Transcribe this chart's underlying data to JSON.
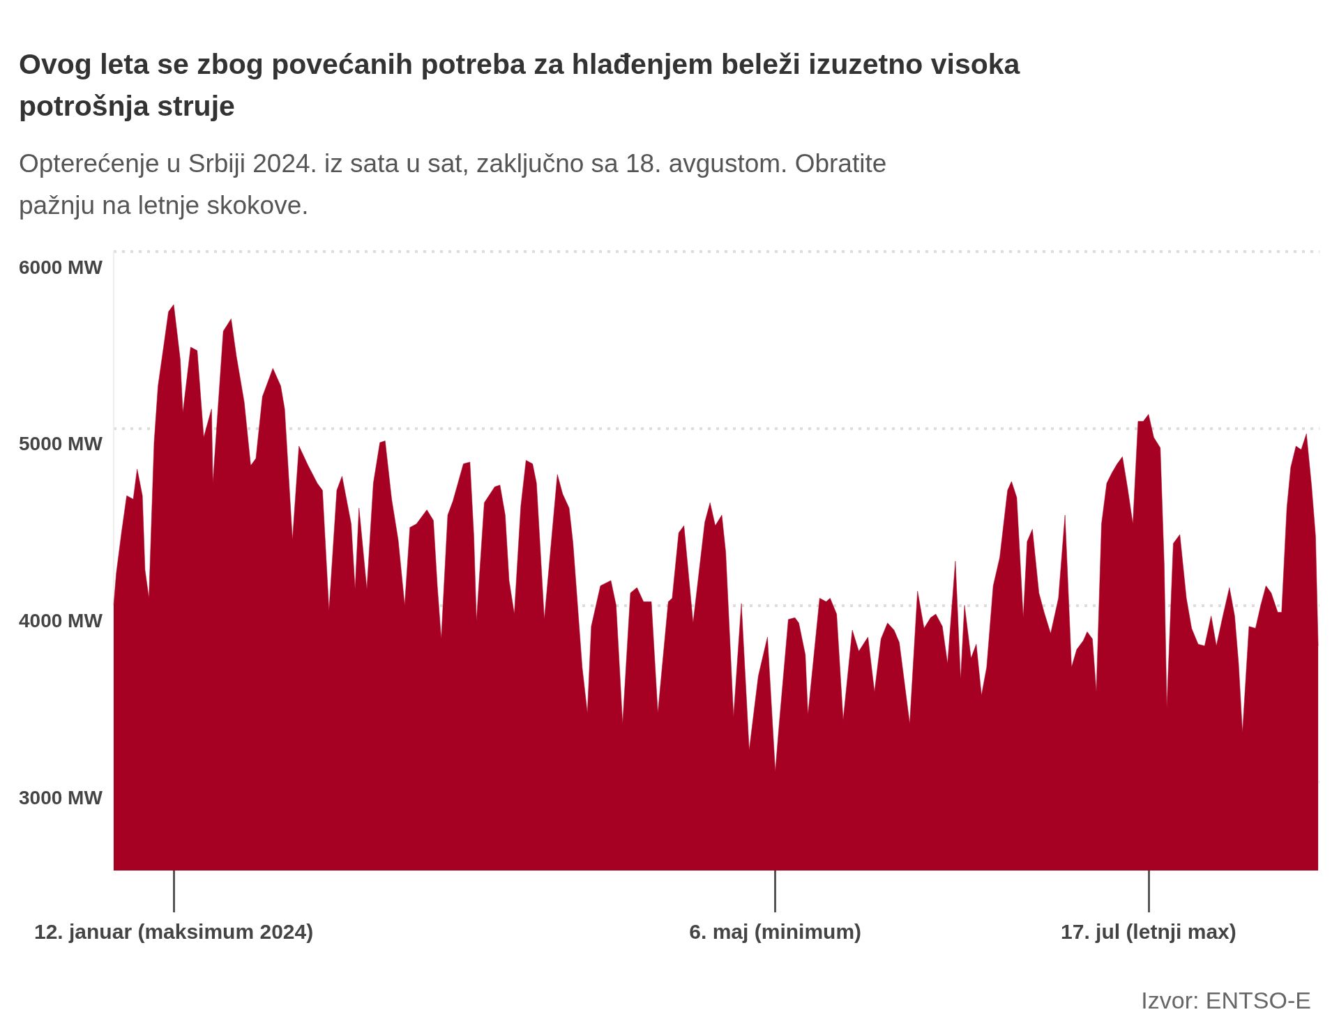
{
  "chart_data": {
    "type": "area",
    "title": "Ovog leta se zbog povećanih potreba za hlađenjem beleži izuzetno visoka potrošnja struje",
    "subtitle": "Opterećenje u Srbiji 2024. iz sata u sat, zaključno sa 18. avgustom. Obratite pažnju na letnje skokove.",
    "annotations": [
      "Izvor: ENTSO-E"
    ],
    "color": "#a60023",
    "grid": "y",
    "xlim": [
      "2024-01-01T00:00",
      "2024-08-19T00:00"
    ],
    "xticks": [
      {
        "value": "2024-01-12T12:00",
        "label": "12. januar (maksimum 2024)"
      },
      {
        "value": "2024-05-06T18:00",
        "label": "6. maj (minimum)"
      },
      {
        "value": "2024-07-17T06:00",
        "label": "17. jul (letnji max)"
      }
    ],
    "ylim": [
      2500,
      6000
    ],
    "yticks": [
      {
        "value": 3000,
        "label": "3000 MW"
      },
      {
        "value": 4000,
        "label": "4000 MW"
      },
      {
        "value": 5000,
        "label": "5000 MW"
      },
      {
        "value": 6000,
        "label": "6000 MW"
      }
    ],
    "x": [
      "2024-01-01T00:00",
      "2024-01-01T12:00",
      "2024-01-02T12:00",
      "2024-01-03T12:00",
      "2024-01-04T18:00",
      "2024-01-05T12:00",
      "2024-01-06T12:00",
      "2024-01-07T00:00",
      "2024-01-07T18:00",
      "2024-01-08T18:00",
      "2024-01-09T12:00",
      "2024-01-10T18:00",
      "2024-01-11T12:00",
      "2024-01-12T12:00",
      "2024-01-13T18:00",
      "2024-01-14T06:00",
      "2024-01-15T18:00",
      "2024-01-17T00:00",
      "2024-01-18T06:00",
      "2024-01-19T18:00",
      "2024-01-20T00:00",
      "2024-01-22T00:00",
      "2024-01-23T12:00",
      "2024-01-24T12:00",
      "2024-01-26T00:00",
      "2024-01-27T06:00",
      "2024-01-28T06:00",
      "2024-01-29T12:00",
      "2024-01-31T12:00",
      "2024-02-02T00:00",
      "2024-02-02T18:00",
      "2024-02-04T06:00",
      "2024-02-05T12:00",
      "2024-02-07T06:00",
      "2024-02-09T00:00",
      "2024-02-10T00:00",
      "2024-02-11T06:00",
      "2024-02-12T18:00",
      "2024-02-13T18:00",
      "2024-02-15T12:00",
      "2024-02-16T06:00",
      "2024-02-17T00:00",
      "2024-02-18T12:00",
      "2024-02-19T18:00",
      "2024-02-21T00:00",
      "2024-02-22T00:00",
      "2024-02-23T06:00",
      "2024-02-24T12:00",
      "2024-02-25T18:00",
      "2024-02-26T18:00",
      "2024-02-28T00:00",
      "2024-03-01T00:00",
      "2024-03-02T06:00",
      "2024-03-03T00:00",
      "2024-03-03T18:00",
      "2024-03-05T00:00",
      "2024-03-06T00:00",
      "2024-03-08T00:00",
      "2024-03-09T06:00",
      "2024-03-10T00:00",
      "2024-03-10T12:00",
      "2024-03-12T00:00",
      "2024-03-14T00:00",
      "2024-03-15T00:00",
      "2024-03-16T00:00",
      "2024-03-16T18:00",
      "2024-03-17T18:00",
      "2024-03-19T00:00",
      "2024-03-20T00:00",
      "2024-03-21T06:00",
      "2024-03-22T00:00",
      "2024-03-23T12:00",
      "2024-03-26T00:00",
      "2024-03-27T00:00",
      "2024-03-28T06:00",
      "2024-03-29T00:00",
      "2024-03-30T18:00",
      "2024-03-31T18:00",
      "2024-04-01T12:00",
      "2024-04-03T06:00",
      "2024-04-05T06:00",
      "2024-04-06T06:00",
      "2024-04-07T12:00",
      "2024-04-09T00:00",
      "2024-04-10T06:00",
      "2024-04-11T12:00",
      "2024-04-13T00:00",
      "2024-04-14T06:00",
      "2024-04-16T06:00",
      "2024-04-17T00:00",
      "2024-04-18T06:00",
      "2024-04-19T06:00",
      "2024-04-21T00:00",
      "2024-04-23T06:00",
      "2024-04-24T06:00",
      "2024-04-25T06:00",
      "2024-04-26T12:00",
      "2024-04-27T06:00",
      "2024-04-28T18:00",
      "2024-04-30T06:00",
      "2024-05-01T18:00",
      "2024-05-03T12:00",
      "2024-05-05T06:00",
      "2024-05-06T18:00",
      "2024-05-07T12:00",
      "2024-05-09T06:00",
      "2024-05-10T12:00",
      "2024-05-11T06:00",
      "2024-05-12T12:00",
      "2024-05-13T00:00",
      "2024-05-15T06:00",
      "2024-05-16T12:00",
      "2024-05-17T06:00",
      "2024-05-18T12:00",
      "2024-05-19T18:00",
      "2024-05-21T12:00",
      "2024-05-22T18:00",
      "2024-05-24T12:00",
      "2024-05-25T18:00",
      "2024-05-27T00:00",
      "2024-05-28T06:00",
      "2024-05-29T12:00",
      "2024-05-30T12:00",
      "2024-06-01T12:00",
      "2024-06-03T00:00",
      "2024-06-04T06:00",
      "2024-06-05T12:00",
      "2024-06-06T12:00",
      "2024-06-07T18:00",
      "2024-06-08T18:00",
      "2024-06-10T06:00",
      "2024-06-11T06:00",
      "2024-06-12T00:00",
      "2024-06-13T06:00",
      "2024-06-14T06:00",
      "2024-06-15T06:00",
      "2024-06-16T06:00",
      "2024-06-17T12:00",
      "2024-06-18T18:00",
      "2024-06-19T12:00",
      "2024-06-20T06:00",
      "2024-06-21T00:00",
      "2024-06-22T00:00",
      "2024-06-23T06:00",
      "2024-06-24T00:00",
      "2024-06-25T00:00",
      "2024-06-26T06:00",
      "2024-06-27T06:00",
      "2024-06-28T12:00",
      "2024-06-30T00:00",
      "2024-07-01T06:00",
      "2024-07-02T12:00",
      "2024-07-03T12:00",
      "2024-07-04T18:00",
      "2024-07-05T12:00",
      "2024-07-06T12:00",
      "2024-07-07T06:00",
      "2024-07-08T06:00",
      "2024-07-09T06:00",
      "2024-07-10T06:00",
      "2024-07-11T06:00",
      "2024-07-12T06:00",
      "2024-07-13T06:00",
      "2024-07-14T06:00",
      "2024-07-15T06:00",
      "2024-07-16T06:00",
      "2024-07-17T06:00",
      "2024-07-18T06:00",
      "2024-07-19T12:00",
      "2024-07-20T06:00",
      "2024-07-20T18:00",
      "2024-07-22T00:00",
      "2024-07-23T06:00",
      "2024-07-24T12:00",
      "2024-07-25T12:00",
      "2024-07-26T18:00",
      "2024-07-28T00:00",
      "2024-07-29T06:00",
      "2024-07-30T06:00",
      "2024-07-31T12:00",
      "2024-08-01T18:00",
      "2024-08-02T18:00",
      "2024-08-03T12:00",
      "2024-08-04T06:00",
      "2024-08-05T12:00",
      "2024-08-06T18:00",
      "2024-08-07T18:00",
      "2024-08-08T18:00",
      "2024-08-09T18:00",
      "2024-08-11T00:00",
      "2024-08-11T18:00",
      "2024-08-12T18:00",
      "2024-08-13T12:00",
      "2024-08-14T12:00",
      "2024-08-15T12:00",
      "2024-08-16T12:00",
      "2024-08-17T12:00",
      "2024-08-18T06:00",
      "2024-08-18T18:00"
    ],
    "values": [
      4000,
      4180,
      4410,
      4620,
      4600,
      4770,
      4620,
      4200,
      4040,
      4920,
      5240,
      5500,
      5660,
      5700,
      5390,
      5090,
      5460,
      5440,
      4950,
      5110,
      4690,
      5550,
      5620,
      5410,
      5150,
      4790,
      4830,
      5180,
      5340,
      5240,
      5110,
      4370,
      4900,
      4790,
      4690,
      4650,
      3970,
      4650,
      4730,
      4460,
      4090,
      4550,
      4090,
      4690,
      4920,
      4930,
      4600,
      4370,
      4000,
      4440,
      4460,
      4540,
      4480,
      4110,
      3810,
      4510,
      4590,
      4800,
      4810,
      4390,
      3910,
      4580,
      4670,
      4680,
      4510,
      4140,
      3950,
      4560,
      4820,
      4800,
      4690,
      3920,
      4740,
      4630,
      4550,
      4350,
      3650,
      3390,
      3880,
      4110,
      4140,
      4000,
      3330,
      4070,
      4100,
      4020,
      4020,
      3390,
      4020,
      4040,
      4410,
      4450,
      3900,
      4470,
      4580,
      4450,
      4510,
      4300,
      3370,
      4010,
      3180,
      3600,
      3820,
      3060,
      3330,
      3920,
      3930,
      3900,
      3720,
      3380,
      4040,
      4020,
      4040,
      3950,
      3350,
      3860,
      3740,
      3820,
      3510,
      3810,
      3900,
      3860,
      3790,
      3330,
      4080,
      3870,
      3930,
      3950,
      3880,
      3670,
      4250,
      3580,
      4000,
      3700,
      3780,
      3490,
      3650,
      4110,
      4270,
      4460,
      4650,
      4700,
      4610,
      3930,
      4360,
      4430,
      4070,
      3960,
      3840,
      4040,
      4510,
      3650,
      3750,
      3800,
      3850,
      3810,
      3510,
      4460,
      4690,
      4750,
      4800,
      4840,
      4660,
      4460,
      5040,
      5040,
      5080,
      4950,
      4890,
      4230,
      3420,
      4350,
      4400,
      4040,
      3870,
      3780,
      3770,
      3940,
      3770,
      3940,
      4100,
      3940,
      3670,
      3280,
      3880,
      3870,
      4000,
      4110,
      4070,
      3960,
      3960,
      4550,
      4780,
      4900,
      4880,
      4970,
      4670,
      4390,
      3770
    ]
  }
}
